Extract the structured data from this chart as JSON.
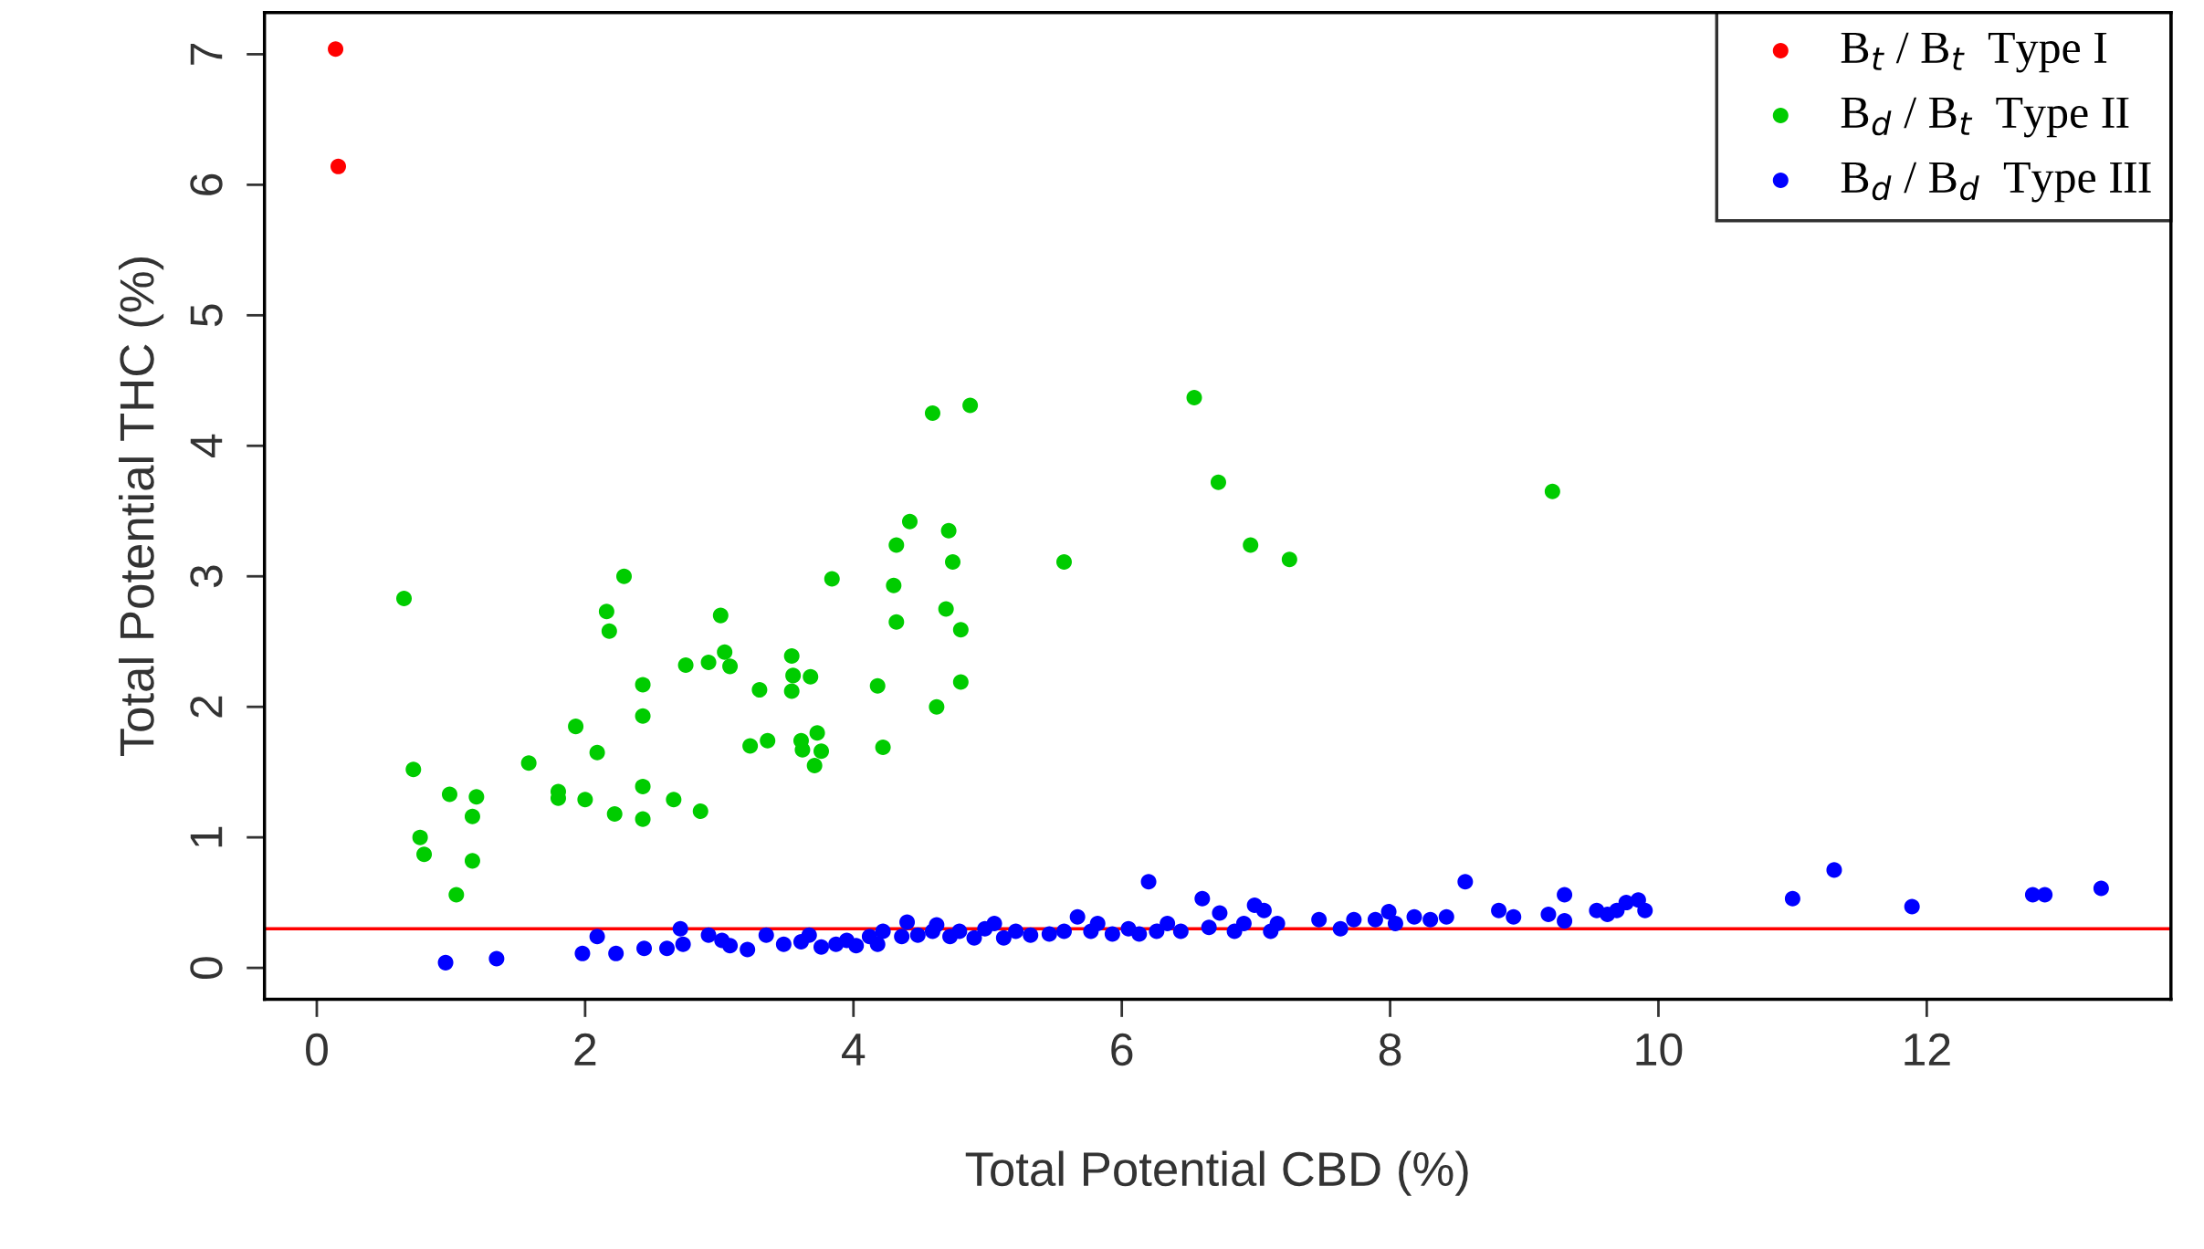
{
  "chart_data": {
    "type": "scatter",
    "xlabel": "Total Potential CBD (%)",
    "ylabel": "Total Potential THC (%)",
    "xlim": [
      -0.39,
      13.82
    ],
    "ylim": [
      -0.24,
      7.32
    ],
    "xticks": [
      0,
      2,
      4,
      6,
      8,
      10,
      12
    ],
    "yticks": [
      0,
      1,
      2,
      3,
      4,
      5,
      6,
      7
    ],
    "grid": false,
    "legend": "top right",
    "marker": "circle",
    "ref_lines": [
      {
        "axis": "y",
        "value": 0.3,
        "color": "#ff0000"
      }
    ],
    "series": [
      {
        "name": "B$_{t}$ / B$_{t}$  Type I",
        "color": "#ff0000",
        "x": [
          0.14,
          0.16
        ],
        "values": [
          7.04,
          6.14
        ]
      },
      {
        "name": "B$_{d}$ / B$_{t}$  Type II",
        "color": "#00cc00",
        "x": [
          0.65,
          0.72,
          0.77,
          0.8,
          0.99,
          1.04,
          1.19,
          1.16,
          1.16,
          1.58,
          1.8,
          1.8,
          1.93,
          2.0,
          2.09,
          2.16,
          2.18,
          2.22,
          2.29,
          2.43,
          2.43,
          2.43,
          2.43,
          2.66,
          2.75,
          2.86,
          2.92,
          3.01,
          3.04,
          3.08,
          3.23,
          3.3,
          3.36,
          3.54,
          3.54,
          3.55,
          3.61,
          3.62,
          3.68,
          3.71,
          3.73,
          3.76,
          3.84,
          4.18,
          4.22,
          4.3,
          4.32,
          4.32,
          4.42,
          4.59,
          4.62,
          4.69,
          4.71,
          4.74,
          4.8,
          4.8,
          4.87,
          5.57,
          6.54,
          6.72,
          6.96,
          7.25,
          9.21
        ],
        "values": [
          2.83,
          1.52,
          1.0,
          0.87,
          1.33,
          0.56,
          1.31,
          1.16,
          0.82,
          1.57,
          1.35,
          1.3,
          1.85,
          1.29,
          1.65,
          2.73,
          2.58,
          1.18,
          3.0,
          2.17,
          1.93,
          1.39,
          1.14,
          1.29,
          2.32,
          1.2,
          2.34,
          2.7,
          2.42,
          2.31,
          1.7,
          2.13,
          1.74,
          2.39,
          2.12,
          2.24,
          1.74,
          1.67,
          2.23,
          1.55,
          1.8,
          1.66,
          2.98,
          2.16,
          1.69,
          2.93,
          3.24,
          2.65,
          3.42,
          4.25,
          2.0,
          2.75,
          3.35,
          3.11,
          2.59,
          2.19,
          4.31,
          3.11,
          4.37,
          3.72,
          3.24,
          3.13,
          3.65
        ]
      },
      {
        "name": "B$_{d}$ / B$_{d}$  Type III",
        "color": "#0000ff",
        "x": [
          0.96,
          1.34,
          1.98,
          2.09,
          2.23,
          2.44,
          2.61,
          2.71,
          2.73,
          2.92,
          3.02,
          3.08,
          3.21,
          3.35,
          3.48,
          3.61,
          3.67,
          3.76,
          3.87,
          3.95,
          4.02,
          4.12,
          4.18,
          4.22,
          4.36,
          4.4,
          4.48,
          4.59,
          4.62,
          4.72,
          4.79,
          4.9,
          4.98,
          5.05,
          5.12,
          5.21,
          5.32,
          5.46,
          5.57,
          5.67,
          5.77,
          5.82,
          5.93,
          6.05,
          6.13,
          6.2,
          6.26,
          6.34,
          6.44,
          6.6,
          6.65,
          6.73,
          6.84,
          6.91,
          6.99,
          7.06,
          7.11,
          7.16,
          7.47,
          7.63,
          7.73,
          7.89,
          7.99,
          8.04,
          8.18,
          8.3,
          8.42,
          8.56,
          8.81,
          8.92,
          9.18,
          9.3,
          9.3,
          9.54,
          9.62,
          9.69,
          9.76,
          9.85,
          9.9,
          11.0,
          11.31,
          11.89,
          12.79,
          12.88,
          13.3
        ],
        "values": [
          0.04,
          0.07,
          0.11,
          0.24,
          0.11,
          0.15,
          0.15,
          0.3,
          0.18,
          0.25,
          0.21,
          0.17,
          0.14,
          0.25,
          0.18,
          0.2,
          0.25,
          0.16,
          0.18,
          0.21,
          0.17,
          0.24,
          0.18,
          0.28,
          0.24,
          0.35,
          0.25,
          0.28,
          0.33,
          0.24,
          0.28,
          0.23,
          0.3,
          0.34,
          0.23,
          0.28,
          0.25,
          0.26,
          0.28,
          0.39,
          0.28,
          0.34,
          0.26,
          0.3,
          0.26,
          0.66,
          0.28,
          0.34,
          0.28,
          0.53,
          0.31,
          0.42,
          0.28,
          0.34,
          0.48,
          0.44,
          0.28,
          0.34,
          0.37,
          0.3,
          0.37,
          0.37,
          0.43,
          0.34,
          0.39,
          0.37,
          0.39,
          0.66,
          0.44,
          0.39,
          0.41,
          0.56,
          0.36,
          0.44,
          0.41,
          0.44,
          0.5,
          0.52,
          0.44,
          0.53,
          0.75,
          0.47,
          0.56,
          0.56,
          0.61
        ]
      }
    ]
  }
}
